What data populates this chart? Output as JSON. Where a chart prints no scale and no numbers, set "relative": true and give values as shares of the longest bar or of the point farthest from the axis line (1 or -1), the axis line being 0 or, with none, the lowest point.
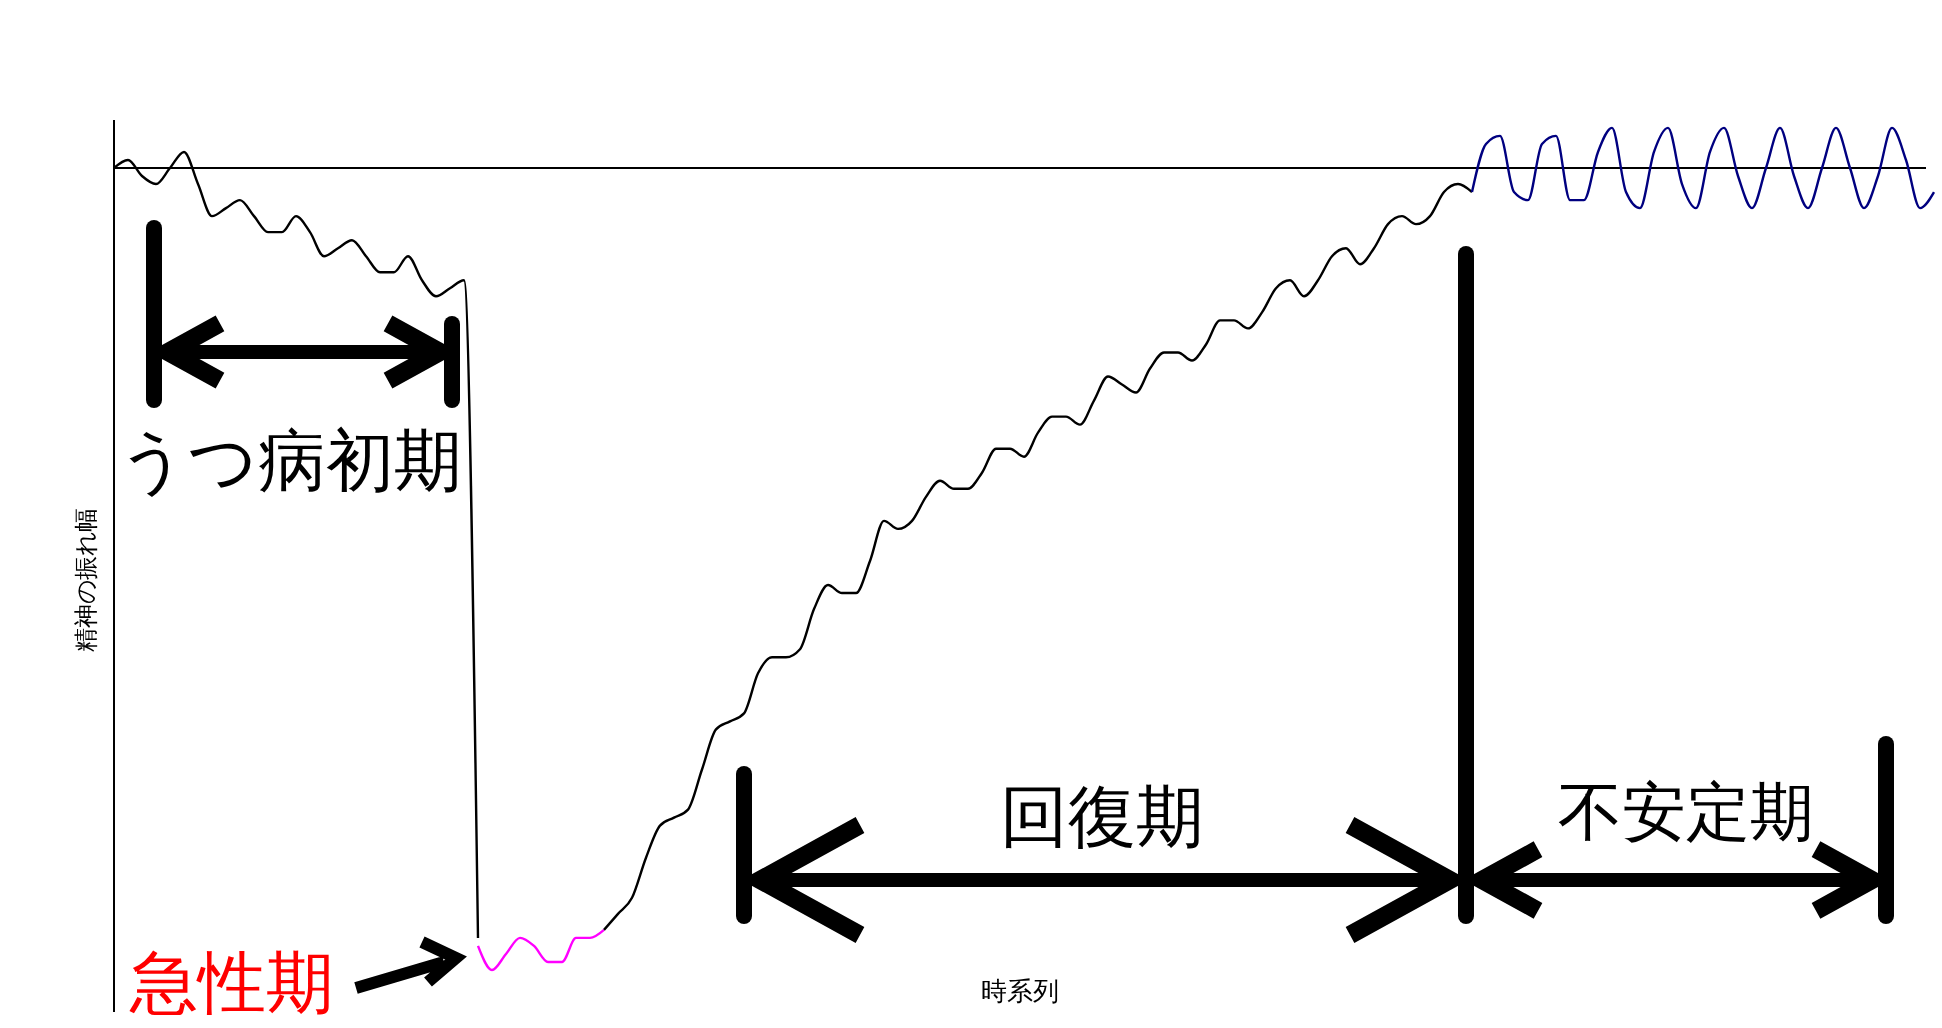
{
  "chart_data": {
    "type": "line",
    "relative": true,
    "xlabel": "時系列",
    "ylabel": "精神の振れ幅",
    "annotations": [
      "うつ病初期",
      "急性期",
      "回復期",
      "不安定期"
    ],
    "categories": [
      null,
      null,
      null,
      null,
      null,
      null,
      null,
      null,
      null,
      null,
      null,
      null,
      null,
      null,
      null,
      null,
      null,
      null,
      null,
      null,
      null,
      null,
      null,
      null,
      null,
      null,
      null,
      null,
      null,
      null,
      null,
      null,
      null,
      null,
      null,
      null,
      null,
      null,
      null,
      null,
      null,
      null,
      null,
      null,
      null,
      null,
      null,
      null,
      null,
      null,
      null,
      null,
      null,
      null,
      null,
      null,
      null,
      null,
      null,
      null,
      null,
      null,
      null,
      null,
      null,
      null,
      null,
      null,
      null,
      null,
      null,
      null,
      null,
      null,
      null,
      null,
      null,
      null,
      null,
      null,
      null,
      null,
      null,
      null,
      null,
      null,
      null,
      null,
      null,
      null,
      null,
      null,
      null,
      null,
      null,
      null,
      null,
      null,
      null,
      null,
      null,
      null,
      null,
      null,
      null,
      null,
      null,
      null,
      null,
      null,
      null,
      null,
      null,
      null,
      null,
      null,
      null,
      null,
      null,
      null,
      null,
      null,
      null,
      null,
      null,
      null,
      null,
      null,
      null,
      null,
      null
    ],
    "series": [
      {
        "color": "#000000",
        "values": [
          0,
          0.01,
          -0.01,
          -0.02,
          0,
          0.02,
          -0.02,
          -0.06,
          -0.05,
          -0.04,
          -0.06,
          -0.08,
          -0.08,
          -0.06,
          -0.08,
          -0.11,
          -0.1,
          -0.09,
          -0.11,
          -0.13,
          -0.13,
          -0.11,
          -0.14,
          -0.16,
          -0.15,
          -0.14,
          -0.96,
          null,
          null,
          null,
          null,
          null,
          null,
          null,
          null,
          null,
          null,
          null,
          null,
          null,
          null,
          null,
          null,
          null,
          null,
          null,
          null,
          null,
          null,
          null,
          null,
          null,
          null,
          null,
          null,
          null,
          null,
          null,
          null,
          null,
          null,
          null,
          null,
          null,
          null,
          null,
          null,
          null,
          null,
          null,
          null,
          null,
          null,
          null,
          null,
          null,
          null,
          null,
          null,
          null,
          null,
          null,
          null,
          null,
          null,
          null,
          null,
          null,
          null,
          null,
          null,
          null,
          null,
          null,
          null,
          null,
          null,
          null,
          null,
          null,
          null,
          null,
          null,
          null,
          null,
          null,
          null,
          null,
          null,
          null,
          null,
          null,
          null,
          null,
          null,
          null,
          null,
          null,
          null,
          null,
          null,
          null,
          null,
          null,
          null,
          null,
          null,
          null,
          null,
          null,
          null
        ]
      },
      {
        "color": "#ff00ff",
        "values": [
          null,
          null,
          null,
          null,
          null,
          null,
          null,
          null,
          null,
          null,
          null,
          null,
          null,
          null,
          null,
          null,
          null,
          null,
          null,
          null,
          null,
          null,
          null,
          null,
          null,
          null,
          -0.97,
          -1.0,
          -0.98,
          -0.96,
          -0.97,
          -0.99,
          -0.99,
          -0.96,
          -0.96,
          -0.95,
          null,
          null,
          null,
          null,
          null,
          null,
          null,
          null,
          null,
          null,
          null,
          null,
          null,
          null,
          null,
          null,
          null,
          null,
          null,
          null,
          null,
          null,
          null,
          null,
          null,
          null,
          null,
          null,
          null,
          null,
          null,
          null,
          null,
          null,
          null,
          null,
          null,
          null,
          null,
          null,
          null,
          null,
          null,
          null,
          null,
          null,
          null,
          null,
          null,
          null,
          null,
          null,
          null,
          null,
          null,
          null,
          null,
          null,
          null,
          null,
          null,
          null,
          null,
          null,
          null,
          null,
          null,
          null,
          null,
          null,
          null,
          null,
          null,
          null,
          null,
          null,
          null,
          null,
          null,
          null,
          null,
          null,
          null,
          null,
          null,
          null,
          null,
          null,
          null,
          null,
          null,
          null,
          null,
          null,
          null
        ]
      },
      {
        "color": "#000000",
        "values": [
          null,
          null,
          null,
          null,
          null,
          null,
          null,
          null,
          null,
          null,
          null,
          null,
          null,
          null,
          null,
          null,
          null,
          null,
          null,
          null,
          null,
          null,
          null,
          null,
          null,
          null,
          null,
          null,
          null,
          null,
          null,
          null,
          null,
          null,
          null,
          -0.95,
          -0.93,
          -0.91,
          -0.86,
          -0.82,
          -0.81,
          -0.8,
          -0.75,
          -0.7,
          -0.69,
          -0.68,
          -0.63,
          -0.61,
          -0.61,
          -0.6,
          -0.55,
          -0.52,
          -0.53,
          -0.53,
          -0.49,
          -0.44,
          -0.45,
          -0.44,
          -0.41,
          -0.39,
          -0.4,
          -0.4,
          -0.38,
          -0.35,
          -0.35,
          -0.36,
          -0.33,
          -0.31,
          -0.31,
          -0.32,
          -0.29,
          -0.26,
          -0.27,
          -0.28,
          -0.25,
          -0.23,
          -0.23,
          -0.24,
          -0.22,
          -0.19,
          -0.19,
          -0.2,
          -0.18,
          -0.15,
          -0.14,
          -0.16,
          -0.14,
          -0.11,
          -0.1,
          -0.12,
          -0.1,
          -0.07,
          -0.06,
          -0.07,
          -0.06,
          -0.03,
          -0.02,
          -0.03,
          null,
          null,
          null,
          null,
          null,
          null,
          null,
          null,
          null,
          null,
          null,
          null,
          null,
          null,
          null,
          null,
          null,
          null,
          null,
          null,
          null,
          null,
          null,
          null,
          null,
          null,
          null,
          null,
          null,
          null,
          null,
          null,
          null
        ]
      },
      {
        "color": "#000080",
        "values": [
          null,
          null,
          null,
          null,
          null,
          null,
          null,
          null,
          null,
          null,
          null,
          null,
          null,
          null,
          null,
          null,
          null,
          null,
          null,
          null,
          null,
          null,
          null,
          null,
          null,
          null,
          null,
          null,
          null,
          null,
          null,
          null,
          null,
          null,
          null,
          null,
          null,
          null,
          null,
          null,
          null,
          null,
          null,
          null,
          null,
          null,
          null,
          null,
          null,
          null,
          null,
          null,
          null,
          null,
          null,
          null,
          null,
          null,
          null,
          null,
          null,
          null,
          null,
          null,
          null,
          null,
          null,
          null,
          null,
          null,
          null,
          null,
          null,
          null,
          null,
          null,
          null,
          null,
          null,
          null,
          null,
          null,
          null,
          null,
          null,
          null,
          null,
          null,
          null,
          null,
          null,
          null,
          null,
          null,
          null,
          null,
          null,
          -0.03,
          0.03,
          0.04,
          -0.03,
          -0.04,
          0.03,
          0.04,
          -0.04,
          -0.04,
          0.02,
          0.05,
          -0.03,
          -0.05,
          0.02,
          0.05,
          -0.02,
          -0.05,
          0.02,
          0.05,
          -0.01,
          -0.05,
          0,
          0.05,
          -0.01,
          -0.05,
          0,
          0.05,
          0,
          -0.05,
          -0.01,
          0.05,
          0.01,
          -0.05,
          -0.03
        ]
      }
    ]
  }
}
